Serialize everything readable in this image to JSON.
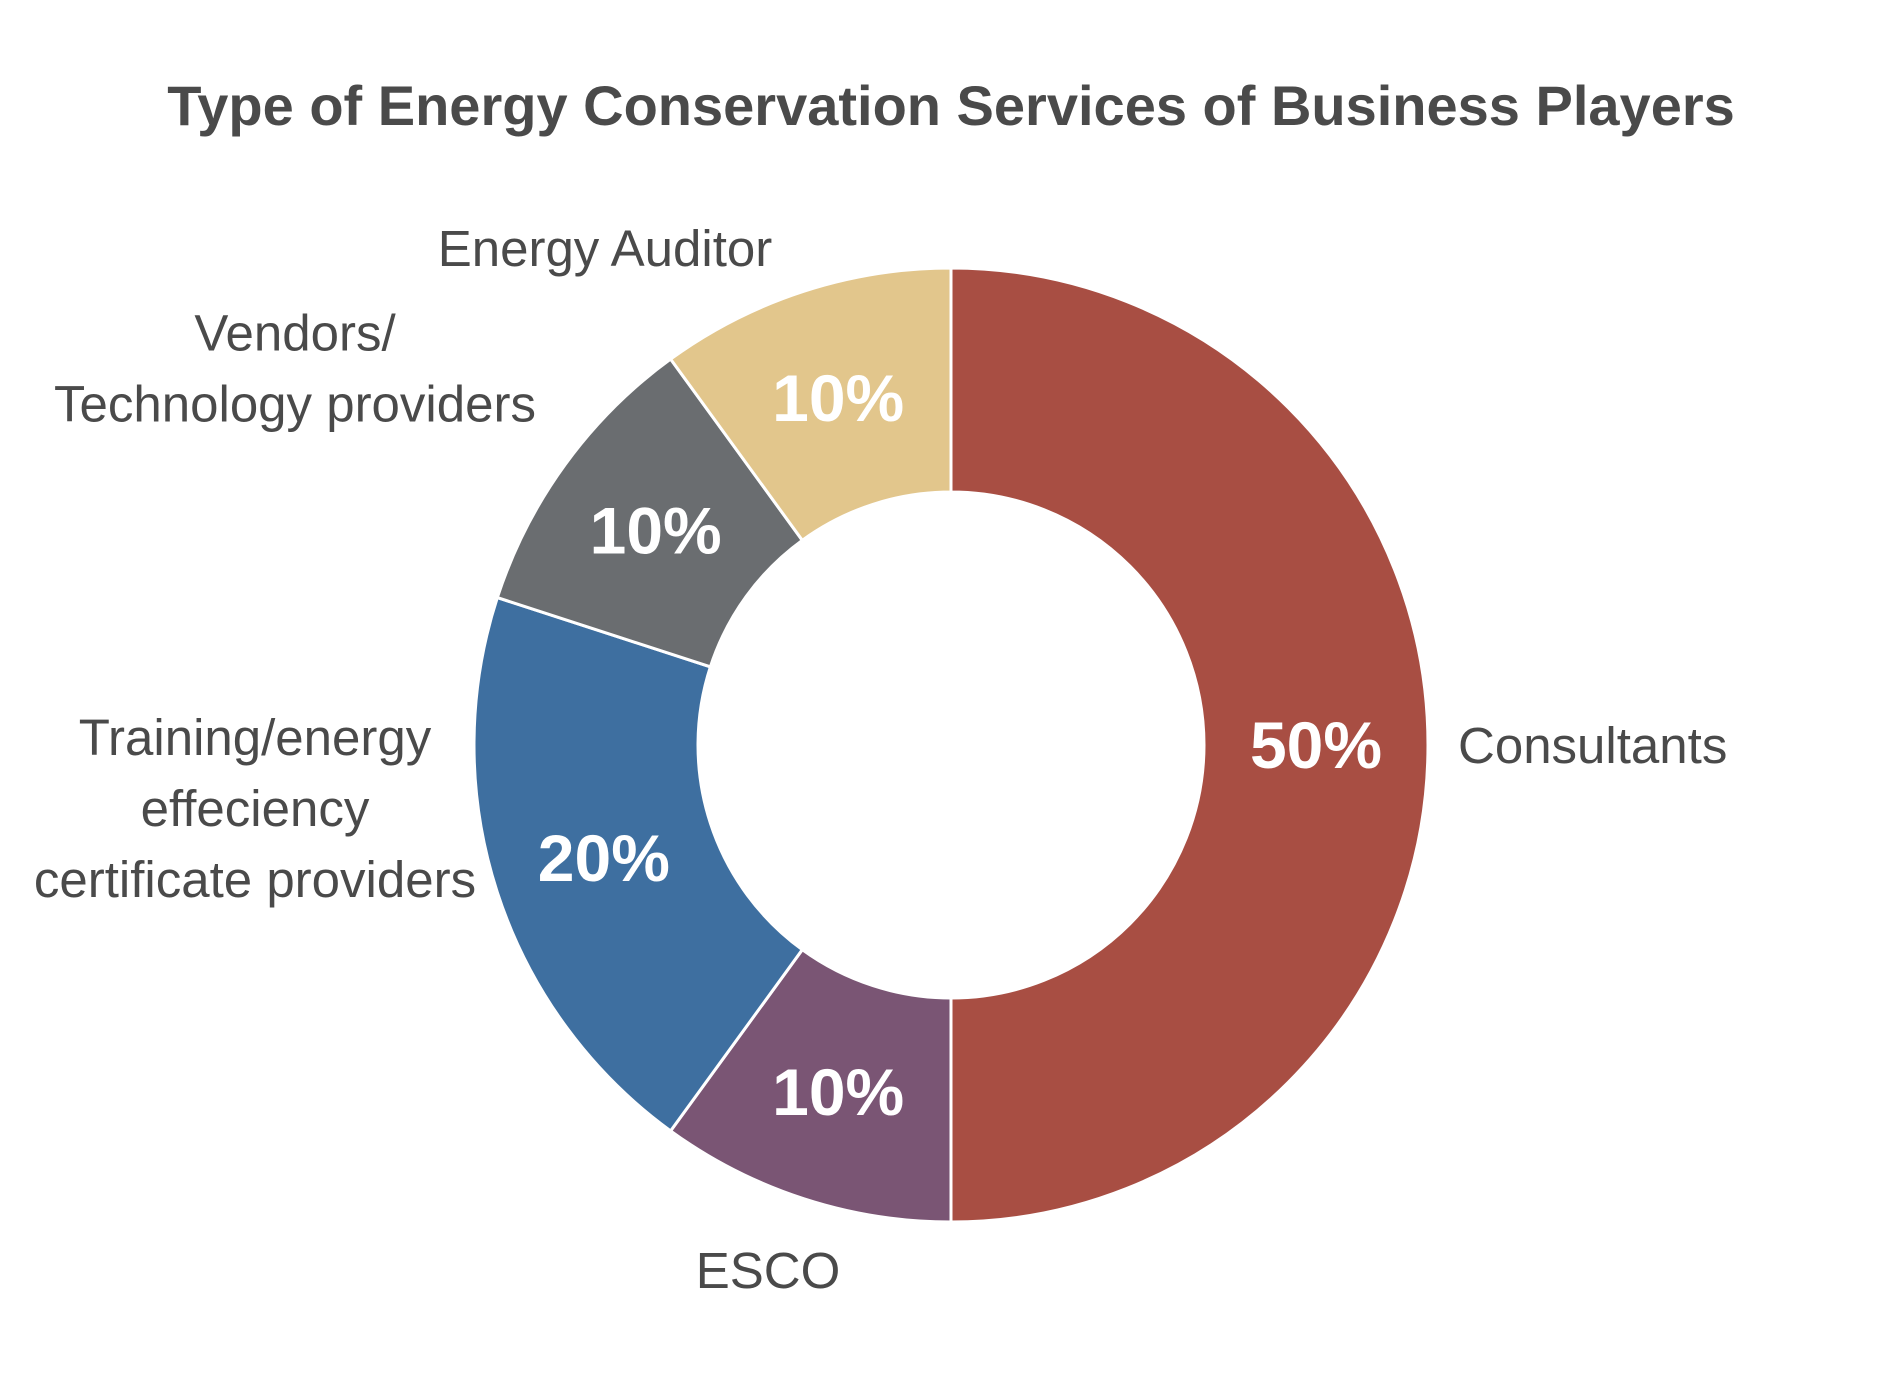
{
  "chart_data": {
    "type": "pie",
    "title": "Type of Energy Conservation Services of Business Players",
    "slices": [
      {
        "label": [
          "Consultants"
        ],
        "value": 50,
        "value_label": "50%",
        "color": "#a84e43"
      },
      {
        "label": [
          "ESCO"
        ],
        "value": 10,
        "value_label": "10%",
        "color": "#7a5574"
      },
      {
        "label": [
          "Training/energy",
          "effeciency",
          "certificate providers"
        ],
        "value": 20,
        "value_label": "20%",
        "color": "#3e6fa0"
      },
      {
        "label": [
          "Vendors/",
          "Technology providers"
        ],
        "value": 10,
        "value_label": "10%",
        "color": "#6a6d70"
      },
      {
        "label": [
          "Energy Auditor"
        ],
        "value": 10,
        "value_label": "10%",
        "color": "#e2c68c"
      }
    ],
    "donut": true,
    "start": "12 o'clock",
    "direction": "clockwise",
    "legend": "none (direct labels)"
  }
}
